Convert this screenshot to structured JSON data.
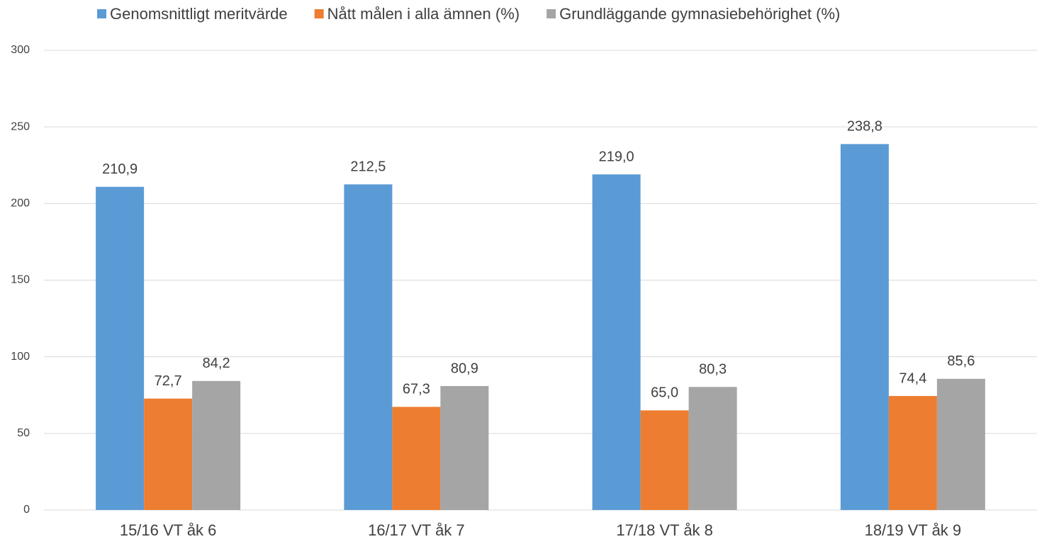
{
  "chart_data": {
    "type": "bar",
    "categories": [
      "15/16 VT åk 6",
      "16/17 VT åk 7",
      "17/18 VT åk 8",
      "18/19 VT åk 9"
    ],
    "series": [
      {
        "name": "Genomsnittligt meritvärde",
        "color": "#5b9bd5",
        "values": [
          210.9,
          212.5,
          219.0,
          238.8
        ],
        "value_labels": [
          "210,9",
          "212,5",
          "219,0",
          "238,8"
        ]
      },
      {
        "name": "Nått målen i alla ämnen (%)",
        "color": "#ed7d31",
        "values": [
          72.7,
          67.3,
          65.0,
          74.4
        ],
        "value_labels": [
          "72,7",
          "67,3",
          "65,0",
          "74,4"
        ]
      },
      {
        "name": "Grundläggande gymnasiebehörighet (%)",
        "color": "#a5a5a5",
        "values": [
          84.2,
          80.9,
          80.3,
          85.6
        ],
        "value_labels": [
          "84,2",
          "80,9",
          "80,3",
          "85,6"
        ]
      }
    ],
    "ylim": [
      0,
      300
    ],
    "yticks": [
      0,
      50,
      100,
      150,
      200,
      250,
      300
    ],
    "grid": true,
    "legend": "top"
  }
}
